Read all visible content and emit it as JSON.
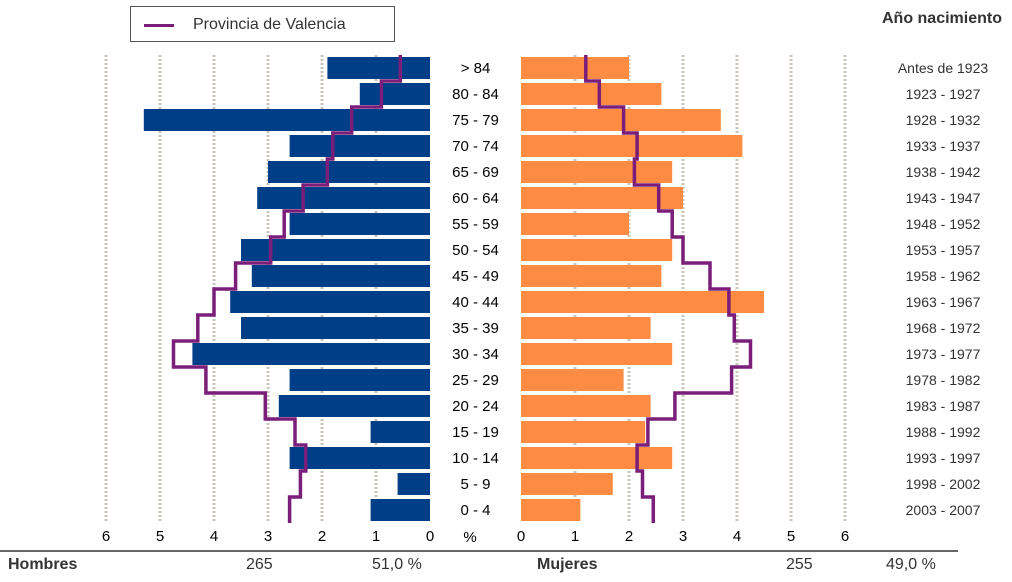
{
  "legend": {
    "label": "Provincia de Valencia",
    "line_color": "#7b1e7a"
  },
  "year_column_title": "Año nacimiento",
  "percent_symbol": "%",
  "footer": {
    "men_label": "Hombres",
    "men_count": "265",
    "men_percent": "51,0 %",
    "women_label": "Mujeres",
    "women_count": "255",
    "women_percent": "49,0 %"
  },
  "colors": {
    "men": "#003f87",
    "women": "#ff8c42",
    "province": "#7b1e7a",
    "grid": "#c8c3bb"
  },
  "chart_data": {
    "type": "bar",
    "subtype": "population-pyramid",
    "categories": [
      "> 84",
      "80 - 84",
      "75 - 79",
      "70 - 74",
      "65 - 69",
      "60 - 64",
      "55 - 59",
      "50 - 54",
      "45 - 49",
      "40 - 44",
      "35 - 39",
      "30 - 34",
      "25 - 29",
      "20 - 24",
      "15 - 19",
      "10 - 14",
      "5 - 9",
      "0 - 4"
    ],
    "birth_years": [
      "Antes de 1923",
      "1923 - 1927",
      "1928 - 1932",
      "1933 - 1937",
      "1938 - 1942",
      "1943 - 1947",
      "1948 - 1952",
      "1953 - 1957",
      "1958 - 1962",
      "1963 - 1967",
      "1968 - 1972",
      "1973 - 1977",
      "1978 - 1982",
      "1983 - 1987",
      "1988 - 1992",
      "1993 - 1997",
      "1998 - 2002",
      "2003 - 2007"
    ],
    "series": [
      {
        "name": "Hombres",
        "side": "left",
        "values": [
          1.9,
          1.3,
          5.3,
          2.6,
          3.0,
          3.2,
          2.6,
          3.5,
          3.3,
          3.7,
          3.5,
          4.4,
          2.6,
          2.8,
          1.1,
          2.6,
          0.6,
          1.1
        ]
      },
      {
        "name": "Mujeres",
        "side": "right",
        "values": [
          2.0,
          2.6,
          3.7,
          4.1,
          2.8,
          3.0,
          2.0,
          2.8,
          2.6,
          4.5,
          2.4,
          2.8,
          1.9,
          2.4,
          2.3,
          2.8,
          1.7,
          1.1
        ]
      },
      {
        "name": "Provincia de Valencia",
        "kind": "line-left",
        "values": [
          0.55,
          0.9,
          1.45,
          1.8,
          1.9,
          2.35,
          2.7,
          2.95,
          3.6,
          4.0,
          4.3,
          4.75,
          4.15,
          3.05,
          2.5,
          2.3,
          2.4,
          2.6
        ]
      },
      {
        "name": "Provincia de Valencia",
        "kind": "line-right",
        "values": [
          1.2,
          1.45,
          1.9,
          2.15,
          2.1,
          2.55,
          2.8,
          3.0,
          3.5,
          3.85,
          3.95,
          4.25,
          3.9,
          2.85,
          2.35,
          2.15,
          2.25,
          2.45
        ]
      }
    ],
    "xlim": [
      0,
      6
    ],
    "xticks_left": [
      "6",
      "5",
      "4",
      "3",
      "2",
      "1",
      "0"
    ],
    "xticks_right": [
      "0",
      "1",
      "2",
      "3",
      "4",
      "5",
      "6"
    ],
    "xlabel": "%",
    "grid": true
  }
}
